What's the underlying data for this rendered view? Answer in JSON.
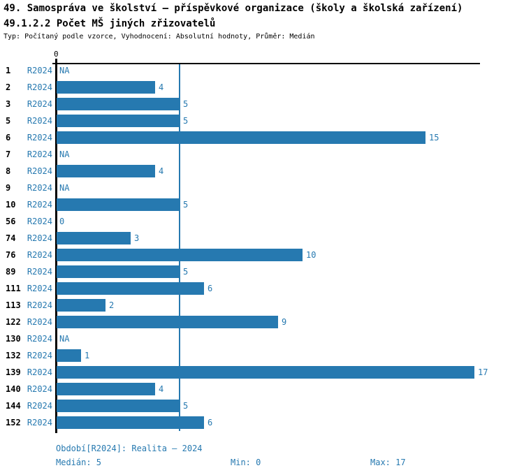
{
  "header": {
    "title": "49. Samospráva ve školství – příspěvkové organizace (školy a školská zařízení)",
    "subtitle": "49.1.2.2 Počet MŠ jiných zřizovatelů",
    "meta": "Typ: Počítaný podle vzorce, Vyhodnocení: Absolutní hodnoty, Průměr: Medián"
  },
  "chart_data": {
    "type": "bar",
    "orientation": "horizontal",
    "series_label": "R2024",
    "categories": [
      "1",
      "2",
      "3",
      "5",
      "6",
      "7",
      "8",
      "9",
      "10",
      "56",
      "74",
      "76",
      "89",
      "111",
      "113",
      "122",
      "130",
      "132",
      "139",
      "140",
      "144",
      "152"
    ],
    "values": [
      null,
      4,
      5,
      5,
      15,
      null,
      4,
      null,
      5,
      0,
      3,
      10,
      5,
      6,
      2,
      9,
      null,
      1,
      17,
      4,
      5,
      6
    ],
    "value_labels": [
      "NA",
      "4",
      "5",
      "5",
      "15",
      "NA",
      "4",
      "NA",
      "5",
      "0",
      "3",
      "10",
      "5",
      "6",
      "2",
      "9",
      "NA",
      "1",
      "17",
      "4",
      "5",
      "6"
    ],
    "x_axis": {
      "zero_tick_label": "0",
      "min": 0,
      "max": 17
    },
    "median_value": 5,
    "median_line": true,
    "grid": false,
    "legend_position": "none",
    "bar_color": "#2679b0",
    "text_color": "#000000"
  },
  "footer": {
    "period": "Období[R2024]: Realita – 2024",
    "median": "Medián: 5",
    "min": "Min: 0",
    "max": "Max: 17"
  }
}
